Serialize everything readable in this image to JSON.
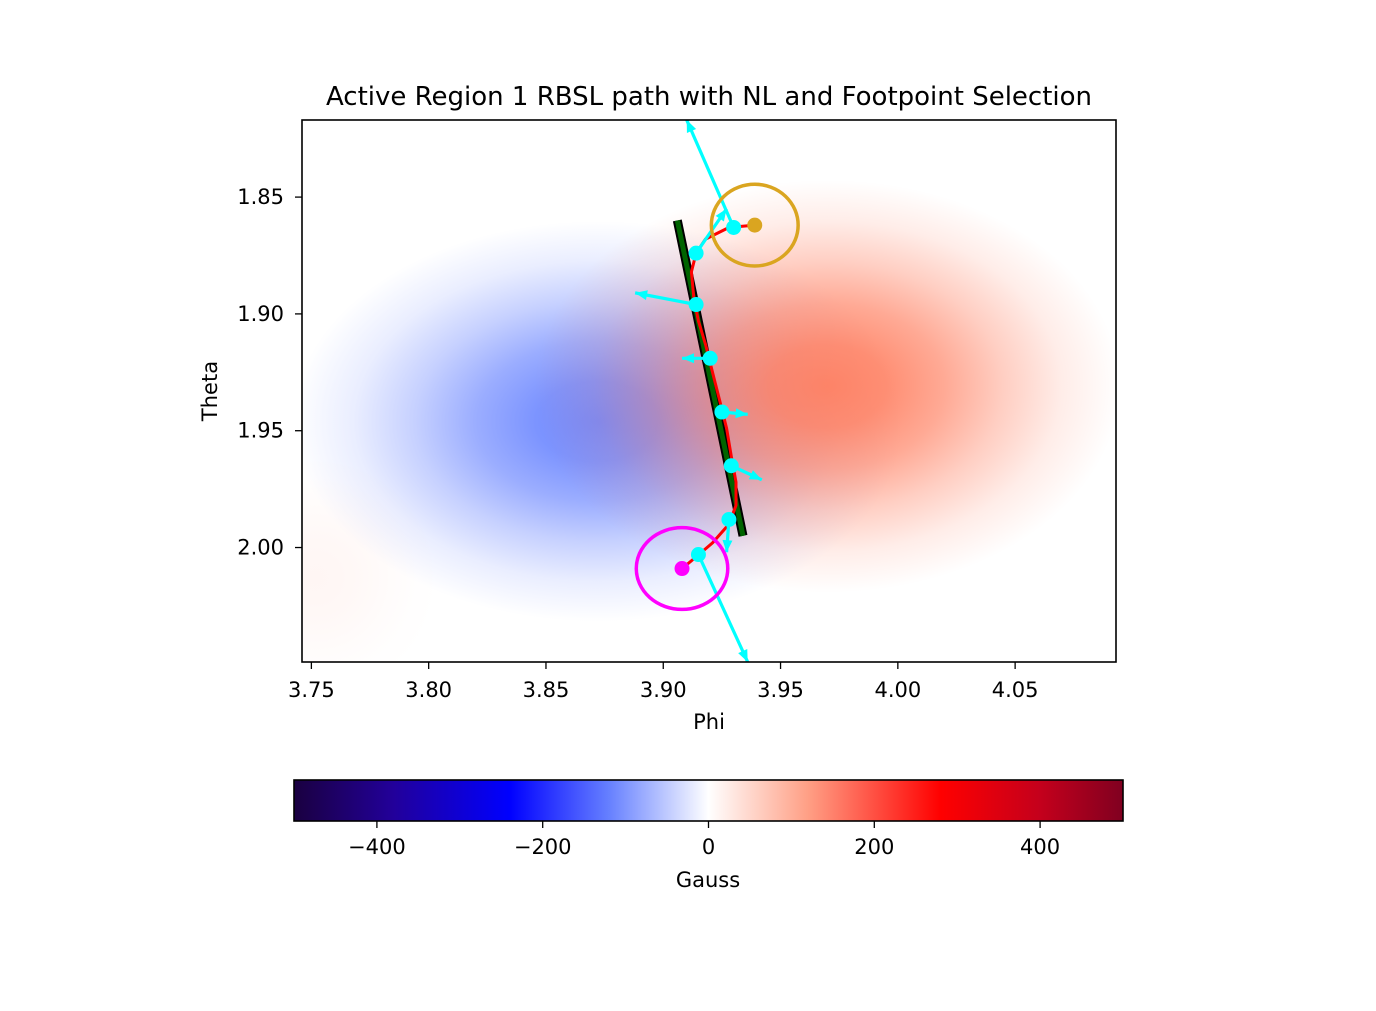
{
  "chart_data": {
    "type": "heatmap",
    "title": "Active Region 1 RBSL path with NL and Footpoint Selection",
    "xlabel": "Phi",
    "ylabel": "Theta",
    "xlim": [
      3.746,
      4.093
    ],
    "ylim": [
      2.049,
      1.817
    ],
    "y_inverted": true,
    "xticks": [
      3.75,
      3.8,
      3.85,
      3.9,
      3.95,
      4.0,
      4.05
    ],
    "xtick_labels": [
      "3.75",
      "3.80",
      "3.85",
      "3.90",
      "3.95",
      "4.00",
      "4.05"
    ],
    "yticks": [
      1.85,
      1.9,
      1.95,
      2.0
    ],
    "ytick_labels": [
      "1.85",
      "1.90",
      "1.95",
      "2.00"
    ],
    "colormap": "seismic",
    "colorbar": {
      "label": "Gauss",
      "range": [
        -500,
        500
      ],
      "ticks": [
        -400,
        -200,
        0,
        200,
        400
      ],
      "tick_labels": [
        "−400",
        "−200",
        "0",
        "200",
        "400"
      ],
      "orientation": "horizontal"
    },
    "field_sources": [
      {
        "phi": 3.872,
        "theta": 1.946,
        "peak_gauss": -160,
        "sigma_phi": 0.05,
        "sigma_theta": 0.033
      },
      {
        "phi": 3.97,
        "theta": 1.931,
        "peak_gauss": 170,
        "sigma_phi": 0.048,
        "sigma_theta": 0.034
      },
      {
        "phi": 3.752,
        "theta": 2.013,
        "peak_gauss": 12,
        "sigma_phi": 0.02,
        "sigma_theta": 0.02
      }
    ],
    "neutral_line": {
      "color": "#006400",
      "points": [
        [
          3.906,
          1.86
        ],
        [
          3.934,
          1.995
        ]
      ]
    },
    "rbsl_path": {
      "color": "#ff0000",
      "points": [
        [
          3.939,
          1.862
        ],
        [
          3.928,
          1.863
        ],
        [
          3.918,
          1.868
        ],
        [
          3.914,
          1.874
        ],
        [
          3.912,
          1.882
        ],
        [
          3.913,
          1.893
        ],
        [
          3.915,
          1.903
        ],
        [
          3.918,
          1.913
        ],
        [
          3.921,
          1.925
        ],
        [
          3.924,
          1.937
        ],
        [
          3.927,
          1.949
        ],
        [
          3.929,
          1.961
        ],
        [
          3.931,
          1.972
        ],
        [
          3.931,
          1.982
        ],
        [
          3.928,
          1.99
        ],
        [
          3.921,
          1.998
        ],
        [
          3.914,
          2.004
        ],
        [
          3.908,
          2.009
        ]
      ]
    },
    "path_nodes": {
      "color": "#00ffff",
      "points": [
        [
          3.93,
          1.863
        ],
        [
          3.914,
          1.874
        ],
        [
          3.914,
          1.896
        ],
        [
          3.92,
          1.919
        ],
        [
          3.925,
          1.942
        ],
        [
          3.929,
          1.965
        ],
        [
          3.928,
          1.988
        ],
        [
          3.915,
          2.003
        ]
      ]
    },
    "vectors": {
      "color": "#00ffff",
      "segments": [
        [
          3.93,
          1.863,
          3.91,
          1.817
        ],
        [
          3.914,
          1.874,
          3.927,
          1.855
        ],
        [
          3.914,
          1.896,
          3.888,
          1.891
        ],
        [
          3.92,
          1.919,
          3.908,
          1.919
        ],
        [
          3.925,
          1.942,
          3.936,
          1.943
        ],
        [
          3.929,
          1.965,
          3.942,
          1.971
        ],
        [
          3.928,
          1.988,
          3.927,
          2.002
        ],
        [
          3.915,
          2.003,
          3.936,
          2.049
        ]
      ]
    },
    "footpoints": [
      {
        "phi": 3.939,
        "theta": 1.862,
        "color": "#daa520",
        "circle_radius_phi": 0.0185,
        "circle_radius_theta": 0.0175
      },
      {
        "phi": 3.908,
        "theta": 2.009,
        "color": "#ff00ff",
        "circle_radius_phi": 0.0195,
        "circle_radius_theta": 0.0175
      }
    ]
  }
}
